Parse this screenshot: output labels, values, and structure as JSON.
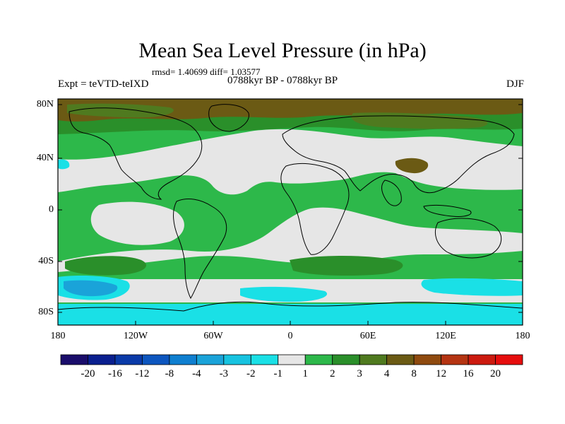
{
  "title": "Mean Sea Level Pressure (in hPa)",
  "stats": "rmsd= 1.40699 diff= 1.03577",
  "period": "0788kyr BP - 0788kyr BP",
  "experiment": "Expt = teVTD-teIXD",
  "season": "DJF",
  "lat_labels": [
    "80N",
    "40N",
    "0",
    "40S",
    "80S"
  ],
  "lon_labels": [
    "180",
    "120W",
    "60W",
    "0",
    "60E",
    "120E",
    "180"
  ],
  "colorbar": {
    "labels": [
      "-20",
      "-16",
      "-12",
      "-8",
      "-4",
      "-3",
      "-2",
      "-1",
      "1",
      "2",
      "3",
      "4",
      "8",
      "12",
      "16",
      "20"
    ],
    "colors": [
      "#1a0d6b",
      "#0a1f8f",
      "#0a3aa8",
      "#0d56bf",
      "#0f7fd0",
      "#1aa3d9",
      "#17c3e0",
      "#1ae0e6",
      "#e6e6e6",
      "#2db84a",
      "#2a8f2a",
      "#4f7a1f",
      "#6b5a14",
      "#8f4a0f",
      "#b53412",
      "#cc1a0f",
      "#e60d0d"
    ]
  },
  "colors": {
    "land_outline": "#000000",
    "neutral": "#e6e6e6",
    "green": "#2db84a",
    "dark_green": "#2a8f2a",
    "olive": "#4f7a1f",
    "brown": "#6b5a14",
    "cyan": "#1ae0e6",
    "light_blue": "#17c3e0",
    "mid_blue": "#1aa3d9"
  }
}
